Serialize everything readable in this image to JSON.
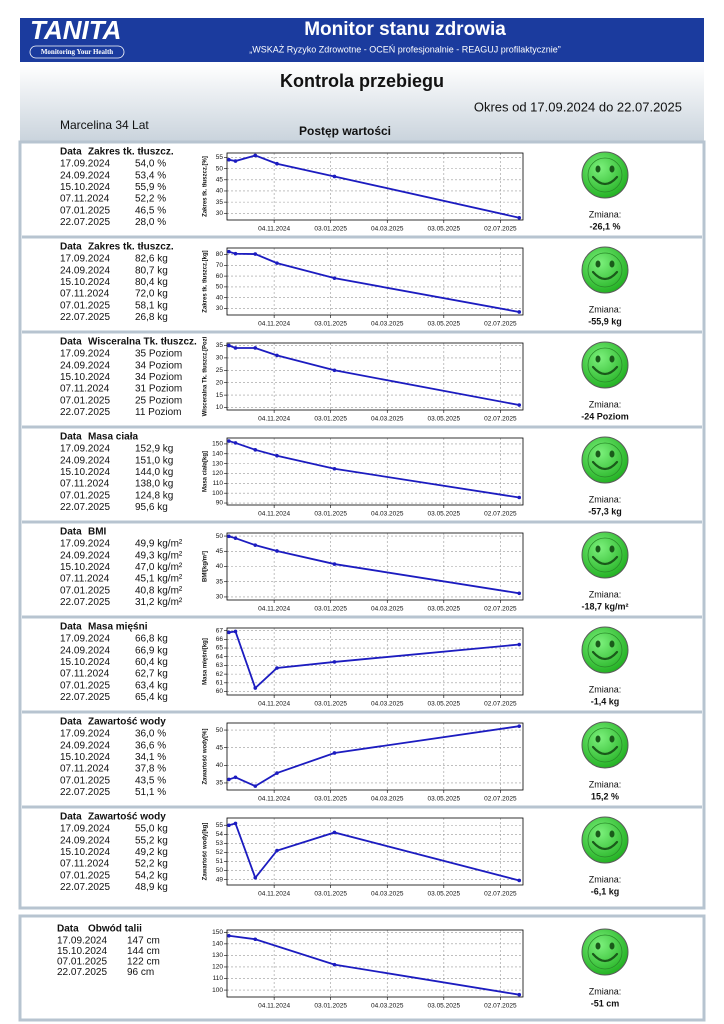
{
  "header": {
    "logo": "TANITA",
    "logo_tagline": "Monitoring Your Health",
    "title": "Monitor stanu zdrowia",
    "subtitle": "„WSKAŻ Ryzyko Zdrowotne - OCEŃ profesjonalnie - REAGUJ profilaktycznie”"
  },
  "page": {
    "title": "Kontrola przebiegu",
    "period": "Okres od 17.09.2024 do 22.07.2025",
    "person": "Marcelina 34 Lat",
    "section": "Postęp wartości"
  },
  "chart_data": [
    {
      "type": "line",
      "table_header": [
        "Data",
        "Zakres tk. tłuszcz."
      ],
      "y_label": "Zakres tk. tłuszcz.[%]",
      "color": "#1c1cc0",
      "grid": true,
      "x": [
        "17.09.2024",
        "24.09.2024",
        "15.10.2024",
        "07.11.2024",
        "07.01.2025",
        "22.07.2025"
      ],
      "values": [
        54.0,
        53.4,
        55.9,
        52.2,
        46.5,
        28.0
      ],
      "value_labels": [
        "54,0 %",
        "53,4 %",
        "55,9 %",
        "52,2 %",
        "46,5 %",
        "28,0 %"
      ],
      "xlim": [
        "15.09.2024",
        "26.07.2025"
      ],
      "xticks": [
        "04.11.2024",
        "03.01.2025",
        "04.03.2025",
        "03.05.2025",
        "02.07.2025"
      ],
      "ylim": [
        27,
        57
      ],
      "yticks": [
        30,
        35,
        40,
        45,
        50,
        55
      ],
      "change_label": "Zmiana:",
      "change_value": "-26,1 %"
    },
    {
      "type": "line",
      "table_header": [
        "Data",
        "Zakres tk. tłuszcz."
      ],
      "y_label": "Zakres tk. tłuszcz.[kg]",
      "color": "#1c1cc0",
      "grid": true,
      "x": [
        "17.09.2024",
        "24.09.2024",
        "15.10.2024",
        "07.11.2024",
        "07.01.2025",
        "22.07.2025"
      ],
      "values": [
        82.6,
        80.7,
        80.4,
        72.0,
        58.1,
        26.8
      ],
      "value_labels": [
        "82,6 kg",
        "80,7 kg",
        "80,4 kg",
        "72,0 kg",
        "58,1 kg",
        "26,8 kg"
      ],
      "xlim": [
        "15.09.2024",
        "26.07.2025"
      ],
      "xticks": [
        "04.11.2024",
        "03.01.2025",
        "04.03.2025",
        "03.05.2025",
        "02.07.2025"
      ],
      "ylim": [
        24,
        86
      ],
      "yticks": [
        30,
        40,
        50,
        60,
        70,
        80
      ],
      "change_label": "Zmiana:",
      "change_value": "-55,9 kg"
    },
    {
      "type": "line",
      "table_header": [
        "Data",
        "Wisceralna Tk. tłuszcz."
      ],
      "y_label": "Wisceralna Tk. tłuszcz.[Pozi",
      "color": "#1c1cc0",
      "grid": true,
      "x": [
        "17.09.2024",
        "24.09.2024",
        "15.10.2024",
        "07.11.2024",
        "07.01.2025",
        "22.07.2025"
      ],
      "values": [
        35,
        34,
        34,
        31,
        25,
        11
      ],
      "value_labels": [
        "35 Poziom",
        "34 Poziom",
        "34 Poziom",
        "31 Poziom",
        "25 Poziom",
        "11 Poziom"
      ],
      "xlim": [
        "15.09.2024",
        "26.07.2025"
      ],
      "xticks": [
        "04.11.2024",
        "03.01.2025",
        "04.03.2025",
        "03.05.2025",
        "02.07.2025"
      ],
      "ylim": [
        9,
        36
      ],
      "yticks": [
        10,
        15,
        20,
        25,
        30,
        35
      ],
      "change_label": "Zmiana:",
      "change_value": "-24 Poziom"
    },
    {
      "type": "line",
      "table_header": [
        "Data",
        "Masa ciała"
      ],
      "y_label": "Masa ciała[kg]",
      "color": "#1c1cc0",
      "grid": true,
      "x": [
        "17.09.2024",
        "24.09.2024",
        "15.10.2024",
        "07.11.2024",
        "07.01.2025",
        "22.07.2025"
      ],
      "values": [
        152.9,
        151.0,
        144.0,
        138.0,
        124.8,
        95.6
      ],
      "value_labels": [
        "152,9 kg",
        "151,0 kg",
        "144,0 kg",
        "138,0 kg",
        "124,8 kg",
        "95,6 kg"
      ],
      "xlim": [
        "15.09.2024",
        "26.07.2025"
      ],
      "xticks": [
        "04.11.2024",
        "03.01.2025",
        "04.03.2025",
        "03.05.2025",
        "02.07.2025"
      ],
      "ylim": [
        88,
        156
      ],
      "yticks": [
        90,
        100,
        110,
        120,
        130,
        140,
        150
      ],
      "change_label": "Zmiana:",
      "change_value": "-57,3 kg"
    },
    {
      "type": "line",
      "table_header": [
        "Data",
        "BMI"
      ],
      "y_label": "BMI[kg/m²]",
      "color": "#1c1cc0",
      "grid": true,
      "x": [
        "17.09.2024",
        "24.09.2024",
        "15.10.2024",
        "07.11.2024",
        "07.01.2025",
        "22.07.2025"
      ],
      "values": [
        49.9,
        49.3,
        47.0,
        45.1,
        40.8,
        31.2
      ],
      "value_labels": [
        "49,9 kg/m²",
        "49,3 kg/m²",
        "47,0 kg/m²",
        "45,1 kg/m²",
        "40,8 kg/m²",
        "31,2 kg/m²"
      ],
      "xlim": [
        "15.09.2024",
        "26.07.2025"
      ],
      "xticks": [
        "04.11.2024",
        "03.01.2025",
        "04.03.2025",
        "03.05.2025",
        "02.07.2025"
      ],
      "ylim": [
        29,
        51
      ],
      "yticks": [
        30,
        35,
        40,
        45,
        50
      ],
      "change_label": "Zmiana:",
      "change_value": "-18,7 kg/m²"
    },
    {
      "type": "line",
      "table_header": [
        "Data",
        "Masa mięśni"
      ],
      "y_label": "Masa mięśni[kg]",
      "color": "#1c1cc0",
      "grid": true,
      "x": [
        "17.09.2024",
        "24.09.2024",
        "15.10.2024",
        "07.11.2024",
        "07.01.2025",
        "22.07.2025"
      ],
      "values": [
        66.8,
        66.9,
        60.4,
        62.7,
        63.4,
        65.4
      ],
      "value_labels": [
        "66,8 kg",
        "66,9 kg",
        "60,4 kg",
        "62,7 kg",
        "63,4 kg",
        "65,4 kg"
      ],
      "xlim": [
        "15.09.2024",
        "26.07.2025"
      ],
      "xticks": [
        "04.11.2024",
        "03.01.2025",
        "04.03.2025",
        "03.05.2025",
        "02.07.2025"
      ],
      "ylim": [
        59.6,
        67.3
      ],
      "yticks": [
        60,
        61,
        62,
        63,
        64,
        65,
        66,
        67
      ],
      "change_label": "Zmiana:",
      "change_value": "-1,4 kg"
    },
    {
      "type": "line",
      "table_header": [
        "Data",
        "Zawartość wody"
      ],
      "y_label": "Zawartość wody[%]",
      "color": "#1c1cc0",
      "grid": true,
      "x": [
        "17.09.2024",
        "24.09.2024",
        "15.10.2024",
        "07.11.2024",
        "07.01.2025",
        "22.07.2025"
      ],
      "values": [
        36.0,
        36.6,
        34.1,
        37.8,
        43.5,
        51.1
      ],
      "value_labels": [
        "36,0 %",
        "36,6 %",
        "34,1 %",
        "37,8 %",
        "43,5 %",
        "51,1 %"
      ],
      "xlim": [
        "15.09.2024",
        "26.07.2025"
      ],
      "xticks": [
        "04.11.2024",
        "03.01.2025",
        "04.03.2025",
        "03.05.2025",
        "02.07.2025"
      ],
      "ylim": [
        33,
        52
      ],
      "yticks": [
        35,
        40,
        45,
        50
      ],
      "change_label": "Zmiana:",
      "change_value": "15,2 %"
    },
    {
      "type": "line",
      "table_header": [
        "Data",
        "Zawartość wody"
      ],
      "y_label": "Zawartość wody[kg]",
      "color": "#1c1cc0",
      "grid": true,
      "x": [
        "17.09.2024",
        "24.09.2024",
        "15.10.2024",
        "07.11.2024",
        "07.01.2025",
        "22.07.2025"
      ],
      "values": [
        55.0,
        55.2,
        49.2,
        52.2,
        54.2,
        48.9
      ],
      "value_labels": [
        "55,0 kg",
        "55,2 kg",
        "49,2 kg",
        "52,2 kg",
        "54,2 kg",
        "48,9 kg"
      ],
      "xlim": [
        "15.09.2024",
        "26.07.2025"
      ],
      "xticks": [
        "04.11.2024",
        "03.01.2025",
        "04.03.2025",
        "03.05.2025",
        "02.07.2025"
      ],
      "ylim": [
        48.4,
        55.8
      ],
      "yticks": [
        49,
        50,
        51,
        52,
        53,
        54,
        55
      ],
      "change_label": "Zmiana:",
      "change_value": "-6,1 kg"
    },
    {
      "type": "line",
      "table_header": [
        "Data",
        "Obwód talii"
      ],
      "color": "#1c1cc0",
      "grid": true,
      "x": [
        "17.09.2024",
        "15.10.2024",
        "07.01.2025",
        "22.07.2025"
      ],
      "values": [
        147,
        144,
        122,
        96
      ],
      "value_labels": [
        "147 cm",
        "144 cm",
        "122 cm",
        "96 cm"
      ],
      "xlim": [
        "15.09.2024",
        "26.07.2025"
      ],
      "xticks": [
        "04.11.2024",
        "03.01.2025",
        "04.03.2025",
        "03.05.2025",
        "02.07.2025"
      ],
      "ylim": [
        94,
        152
      ],
      "yticks": [
        100,
        110,
        120,
        130,
        140,
        150
      ],
      "change_label": "Zmiana:",
      "change_value": "-51 cm"
    }
  ]
}
